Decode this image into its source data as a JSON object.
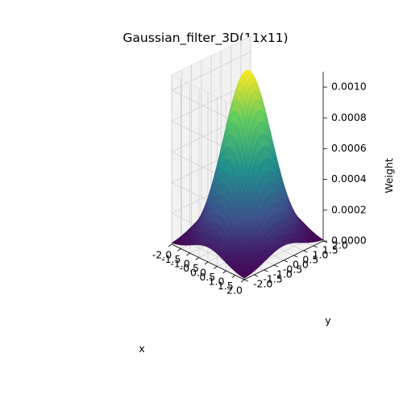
{
  "chart_data": {
    "type": "surface3d",
    "title": "Gaussian_filter_3D(11x11)",
    "xlabel": "x",
    "ylabel": "y",
    "zlabel": "Weight",
    "xlim": [
      -2.0,
      2.0
    ],
    "ylim": [
      -2.0,
      2.0
    ],
    "zlim": [
      0.0,
      0.0011
    ],
    "x_ticks": [
      "-2.0",
      "-1.5",
      "-1.0",
      "-0.5",
      "0.0",
      "0.5",
      "1.0",
      "1.5",
      "2.0"
    ],
    "y_ticks": [
      "-2.0",
      "-1.5",
      "-1.0",
      "-0.5",
      "0.0",
      "0.5",
      "1.0",
      "1.5",
      "2.0"
    ],
    "z_ticks": [
      "0.0000",
      "0.0002",
      "0.0004",
      "0.0006",
      "0.0008",
      "0.0010"
    ],
    "surface": {
      "function": "gaussian",
      "peak_weight": 0.00112,
      "peak_at": [
        0.0,
        0.0
      ],
      "sigma": 0.9,
      "colormap": "viridis",
      "colormap_stops": [
        "#440154",
        "#3b528b",
        "#21918c",
        "#5ec962",
        "#fde725"
      ]
    },
    "grid": true,
    "pane_color": "#f2f2f2"
  }
}
